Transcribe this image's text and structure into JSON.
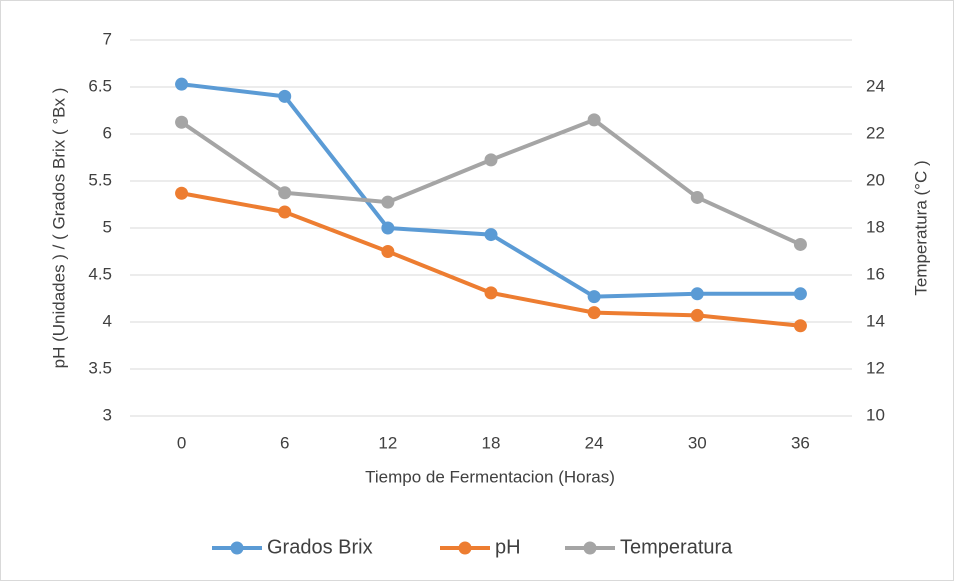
{
  "chart_data": {
    "type": "line",
    "xlabel": "Tiempo de Fermentacion (Horas)",
    "ylabel": "pH (Unidades ) / ( Grados Brix ( °Bx )",
    "y2label": "Temperatura (°C )",
    "categories": [
      "0",
      "6",
      "12",
      "18",
      "24",
      "30",
      "36"
    ],
    "series": [
      {
        "name": "Grados Brix",
        "color": "#5b9bd5",
        "values": [
          6.53,
          6.4,
          5.0,
          4.93,
          4.27,
          4.3,
          4.3
        ]
      },
      {
        "name": "pH",
        "color": "#ed7d31",
        "values": [
          5.37,
          5.17,
          4.75,
          4.31,
          4.1,
          4.07,
          3.96
        ]
      },
      {
        "name": "Temperatura",
        "color": "#a5a5a5",
        "axis": "y2",
        "values": [
          22.5,
          19.5,
          19.1,
          20.9,
          22.6,
          19.3,
          17.3
        ]
      }
    ],
    "ylim": [
      3,
      7
    ],
    "yticks": [
      3,
      3.5,
      4,
      4.5,
      5,
      5.5,
      6,
      6.5,
      7
    ],
    "y2lim": [
      10,
      26
    ],
    "y2ticks": [
      10,
      12,
      14,
      16,
      18,
      20,
      22,
      24
    ],
    "grid": true,
    "legend": "bottom"
  }
}
